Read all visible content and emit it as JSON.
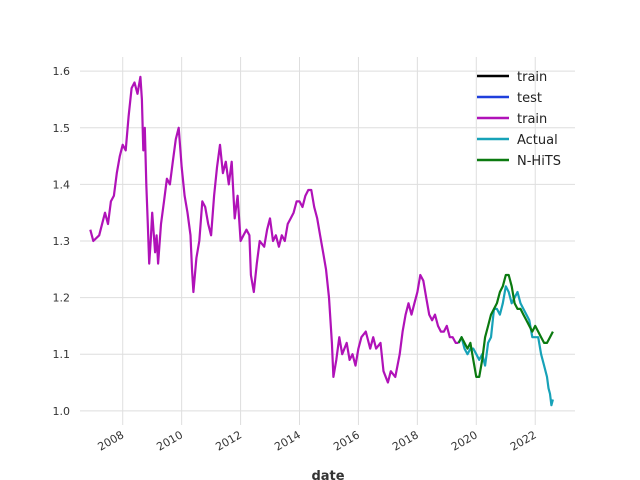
{
  "chart_data": {
    "type": "line",
    "xlabel": "date",
    "ylabel": "",
    "title": "",
    "x_ticks": [
      "2008",
      "2010",
      "2012",
      "2014",
      "2016",
      "2018",
      "2020",
      "2022"
    ],
    "y_ticks": [
      "1.0",
      "1.1",
      "1.2",
      "1.3",
      "1.4",
      "1.5",
      "1.6"
    ],
    "xlim": [
      2006.55,
      2023.35
    ],
    "ylim": [
      0.975,
      1.625
    ],
    "grid": true,
    "legend_position": "top-right",
    "legend": [
      {
        "label": "train",
        "color": "#000000"
      },
      {
        "label": "test",
        "color": "#1f3fdc"
      },
      {
        "label": "train",
        "color": "#b012b8"
      },
      {
        "label": "Actual",
        "color": "#17a2b8"
      },
      {
        "label": "N-HiTS",
        "color": "#0b7a10"
      }
    ],
    "series": [
      {
        "name": "train",
        "color": "#b012b8",
        "points": [
          [
            2006.9,
            1.32
          ],
          [
            2007.0,
            1.3
          ],
          [
            2007.2,
            1.31
          ],
          [
            2007.4,
            1.35
          ],
          [
            2007.5,
            1.33
          ],
          [
            2007.6,
            1.37
          ],
          [
            2007.7,
            1.38
          ],
          [
            2007.8,
            1.42
          ],
          [
            2007.9,
            1.45
          ],
          [
            2008.0,
            1.47
          ],
          [
            2008.1,
            1.46
          ],
          [
            2008.2,
            1.52
          ],
          [
            2008.3,
            1.57
          ],
          [
            2008.4,
            1.58
          ],
          [
            2008.5,
            1.56
          ],
          [
            2008.6,
            1.59
          ],
          [
            2008.65,
            1.55
          ],
          [
            2008.7,
            1.46
          ],
          [
            2008.75,
            1.5
          ],
          [
            2008.8,
            1.4
          ],
          [
            2008.85,
            1.33
          ],
          [
            2008.9,
            1.26
          ],
          [
            2008.95,
            1.3
          ],
          [
            2009.0,
            1.35
          ],
          [
            2009.1,
            1.28
          ],
          [
            2009.15,
            1.31
          ],
          [
            2009.2,
            1.26
          ],
          [
            2009.3,
            1.33
          ],
          [
            2009.4,
            1.37
          ],
          [
            2009.5,
            1.41
          ],
          [
            2009.6,
            1.4
          ],
          [
            2009.7,
            1.44
          ],
          [
            2009.8,
            1.48
          ],
          [
            2009.9,
            1.5
          ],
          [
            2010.0,
            1.43
          ],
          [
            2010.1,
            1.38
          ],
          [
            2010.2,
            1.35
          ],
          [
            2010.3,
            1.31
          ],
          [
            2010.35,
            1.25
          ],
          [
            2010.4,
            1.21
          ],
          [
            2010.5,
            1.27
          ],
          [
            2010.6,
            1.3
          ],
          [
            2010.7,
            1.37
          ],
          [
            2010.8,
            1.36
          ],
          [
            2010.9,
            1.33
          ],
          [
            2011.0,
            1.31
          ],
          [
            2011.1,
            1.38
          ],
          [
            2011.2,
            1.43
          ],
          [
            2011.3,
            1.47
          ],
          [
            2011.4,
            1.42
          ],
          [
            2011.5,
            1.44
          ],
          [
            2011.6,
            1.4
          ],
          [
            2011.7,
            1.44
          ],
          [
            2011.8,
            1.34
          ],
          [
            2011.9,
            1.38
          ],
          [
            2012.0,
            1.3
          ],
          [
            2012.1,
            1.31
          ],
          [
            2012.2,
            1.32
          ],
          [
            2012.3,
            1.31
          ],
          [
            2012.35,
            1.24
          ],
          [
            2012.45,
            1.21
          ],
          [
            2012.55,
            1.26
          ],
          [
            2012.65,
            1.3
          ],
          [
            2012.8,
            1.29
          ],
          [
            2012.9,
            1.32
          ],
          [
            2013.0,
            1.34
          ],
          [
            2013.1,
            1.3
          ],
          [
            2013.2,
            1.31
          ],
          [
            2013.3,
            1.29
          ],
          [
            2013.4,
            1.31
          ],
          [
            2013.5,
            1.3
          ],
          [
            2013.6,
            1.33
          ],
          [
            2013.7,
            1.34
          ],
          [
            2013.8,
            1.35
          ],
          [
            2013.9,
            1.37
          ],
          [
            2014.0,
            1.37
          ],
          [
            2014.1,
            1.36
          ],
          [
            2014.2,
            1.38
          ],
          [
            2014.3,
            1.39
          ],
          [
            2014.4,
            1.39
          ],
          [
            2014.5,
            1.36
          ],
          [
            2014.6,
            1.34
          ],
          [
            2014.7,
            1.31
          ],
          [
            2014.8,
            1.28
          ],
          [
            2014.9,
            1.25
          ],
          [
            2015.0,
            1.2
          ],
          [
            2015.1,
            1.12
          ],
          [
            2015.15,
            1.06
          ],
          [
            2015.25,
            1.09
          ],
          [
            2015.35,
            1.13
          ],
          [
            2015.45,
            1.1
          ],
          [
            2015.6,
            1.12
          ],
          [
            2015.7,
            1.09
          ],
          [
            2015.8,
            1.1
          ],
          [
            2015.9,
            1.08
          ],
          [
            2016.0,
            1.11
          ],
          [
            2016.1,
            1.13
          ],
          [
            2016.25,
            1.14
          ],
          [
            2016.4,
            1.11
          ],
          [
            2016.5,
            1.13
          ],
          [
            2016.6,
            1.11
          ],
          [
            2016.75,
            1.12
          ],
          [
            2016.85,
            1.07
          ],
          [
            2017.0,
            1.05
          ],
          [
            2017.1,
            1.07
          ],
          [
            2017.25,
            1.06
          ],
          [
            2017.4,
            1.1
          ],
          [
            2017.5,
            1.14
          ],
          [
            2017.6,
            1.17
          ],
          [
            2017.7,
            1.19
          ],
          [
            2017.8,
            1.17
          ],
          [
            2017.9,
            1.19
          ],
          [
            2018.0,
            1.21
          ],
          [
            2018.1,
            1.24
          ],
          [
            2018.2,
            1.23
          ],
          [
            2018.3,
            1.2
          ],
          [
            2018.4,
            1.17
          ],
          [
            2018.5,
            1.16
          ],
          [
            2018.6,
            1.17
          ],
          [
            2018.7,
            1.15
          ],
          [
            2018.8,
            1.14
          ],
          [
            2018.9,
            1.14
          ],
          [
            2019.0,
            1.15
          ],
          [
            2019.1,
            1.13
          ],
          [
            2019.2,
            1.13
          ],
          [
            2019.3,
            1.12
          ],
          [
            2019.4,
            1.12
          ]
        ]
      },
      {
        "name": "Actual",
        "color": "#17a2b8",
        "points": [
          [
            2019.4,
            1.12
          ],
          [
            2019.5,
            1.13
          ],
          [
            2019.6,
            1.11
          ],
          [
            2019.7,
            1.1
          ],
          [
            2019.8,
            1.11
          ],
          [
            2019.9,
            1.11
          ],
          [
            2020.0,
            1.1
          ],
          [
            2020.1,
            1.09
          ],
          [
            2020.2,
            1.1
          ],
          [
            2020.3,
            1.08
          ],
          [
            2020.4,
            1.12
          ],
          [
            2020.5,
            1.13
          ],
          [
            2020.6,
            1.18
          ],
          [
            2020.7,
            1.18
          ],
          [
            2020.8,
            1.17
          ],
          [
            2020.9,
            1.19
          ],
          [
            2021.0,
            1.22
          ],
          [
            2021.1,
            1.21
          ],
          [
            2021.2,
            1.19
          ],
          [
            2021.3,
            1.2
          ],
          [
            2021.4,
            1.21
          ],
          [
            2021.5,
            1.19
          ],
          [
            2021.6,
            1.18
          ],
          [
            2021.7,
            1.17
          ],
          [
            2021.8,
            1.16
          ],
          [
            2021.9,
            1.13
          ],
          [
            2022.0,
            1.13
          ],
          [
            2022.1,
            1.13
          ],
          [
            2022.2,
            1.1
          ],
          [
            2022.3,
            1.08
          ],
          [
            2022.4,
            1.06
          ],
          [
            2022.45,
            1.04
          ],
          [
            2022.5,
            1.03
          ],
          [
            2022.55,
            1.01
          ],
          [
            2022.6,
            1.02
          ]
        ]
      },
      {
        "name": "N-HiTS",
        "color": "#0b7a10",
        "points": [
          [
            2019.4,
            1.12
          ],
          [
            2019.5,
            1.13
          ],
          [
            2019.6,
            1.12
          ],
          [
            2019.7,
            1.11
          ],
          [
            2019.8,
            1.12
          ],
          [
            2019.9,
            1.09
          ],
          [
            2020.0,
            1.06
          ],
          [
            2020.1,
            1.06
          ],
          [
            2020.2,
            1.09
          ],
          [
            2020.3,
            1.13
          ],
          [
            2020.4,
            1.15
          ],
          [
            2020.5,
            1.17
          ],
          [
            2020.6,
            1.18
          ],
          [
            2020.7,
            1.19
          ],
          [
            2020.8,
            1.21
          ],
          [
            2020.9,
            1.22
          ],
          [
            2021.0,
            1.24
          ],
          [
            2021.1,
            1.24
          ],
          [
            2021.2,
            1.22
          ],
          [
            2021.3,
            1.19
          ],
          [
            2021.4,
            1.18
          ],
          [
            2021.5,
            1.18
          ],
          [
            2021.6,
            1.17
          ],
          [
            2021.7,
            1.16
          ],
          [
            2021.8,
            1.15
          ],
          [
            2021.9,
            1.14
          ],
          [
            2022.0,
            1.15
          ],
          [
            2022.1,
            1.14
          ],
          [
            2022.2,
            1.13
          ],
          [
            2022.3,
            1.12
          ],
          [
            2022.4,
            1.12
          ],
          [
            2022.5,
            1.13
          ],
          [
            2022.6,
            1.14
          ]
        ]
      }
    ]
  }
}
